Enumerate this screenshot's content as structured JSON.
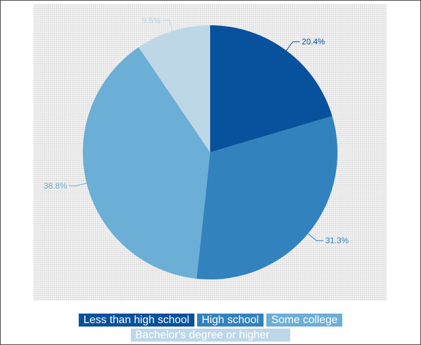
{
  "chart_data": {
    "type": "pie",
    "title": "",
    "start_angle": "12 o'clock",
    "direction": "clockwise",
    "legend_position": "bottom",
    "slices": [
      {
        "name": "Less than high school",
        "value": 20.4,
        "label": "20.4%",
        "color": "#08519c",
        "label_color": "#08519c"
      },
      {
        "name": "High school",
        "value": 31.3,
        "label": "31.3%",
        "color": "#3182bd",
        "label_color": "#3182bd"
      },
      {
        "name": "Some college",
        "value": 38.8,
        "label": "38.8%",
        "color": "#6baed6",
        "label_color": "#6baed6"
      },
      {
        "name": "Bachelor's degree or higher",
        "value": 9.5,
        "label": "9.5%",
        "color": "#bdd7e7",
        "label_color": "#bdd7e7"
      }
    ]
  }
}
